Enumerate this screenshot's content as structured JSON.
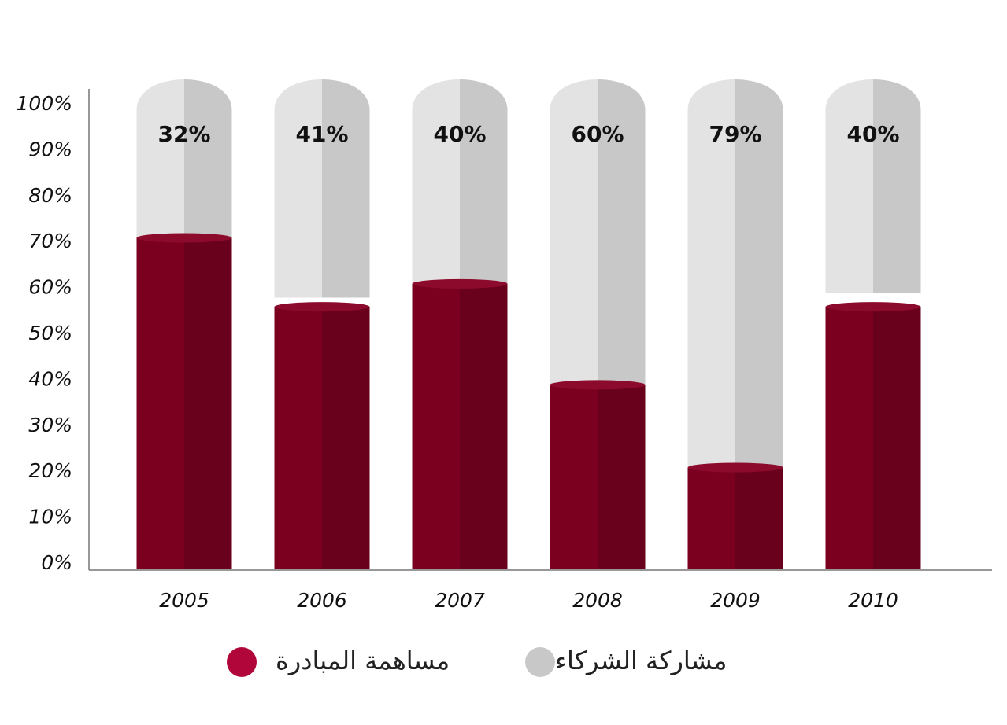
{
  "chart_data": {
    "type": "bar",
    "categories": [
      "2005",
      "2006",
      "2007",
      "2008",
      "2009",
      "2010"
    ],
    "series": [
      {
        "name": "مساهمة المبادرة",
        "color": "#7b0020",
        "values": [
          72,
          57,
          62,
          40,
          22,
          57
        ]
      },
      {
        "name": "مشاركة الشركاء",
        "color": "#e3e3e3",
        "values": [
          32,
          41,
          40,
          60,
          79,
          40
        ],
        "value_labels": [
          "32%",
          "41%",
          "40%",
          "60%",
          "79%",
          "40%"
        ]
      }
    ],
    "ylim": [
      0,
      100
    ],
    "yticks": [
      {
        "value": 0,
        "label": "0%"
      },
      {
        "value": 10,
        "label": "10%"
      },
      {
        "value": 20,
        "label": "20%"
      },
      {
        "value": 30,
        "label": "30%"
      },
      {
        "value": 40,
        "label": "40%"
      },
      {
        "value": 50,
        "label": "50%"
      },
      {
        "value": 60,
        "label": "60%"
      },
      {
        "value": 70,
        "label": "70%"
      },
      {
        "value": 80,
        "label": "80%"
      },
      {
        "value": 90,
        "label": "90%"
      },
      {
        "value": 100,
        "label": "100%"
      }
    ],
    "legend_colors": [
      "#b0063a",
      "#c8c8c8"
    ],
    "grid": false
  }
}
